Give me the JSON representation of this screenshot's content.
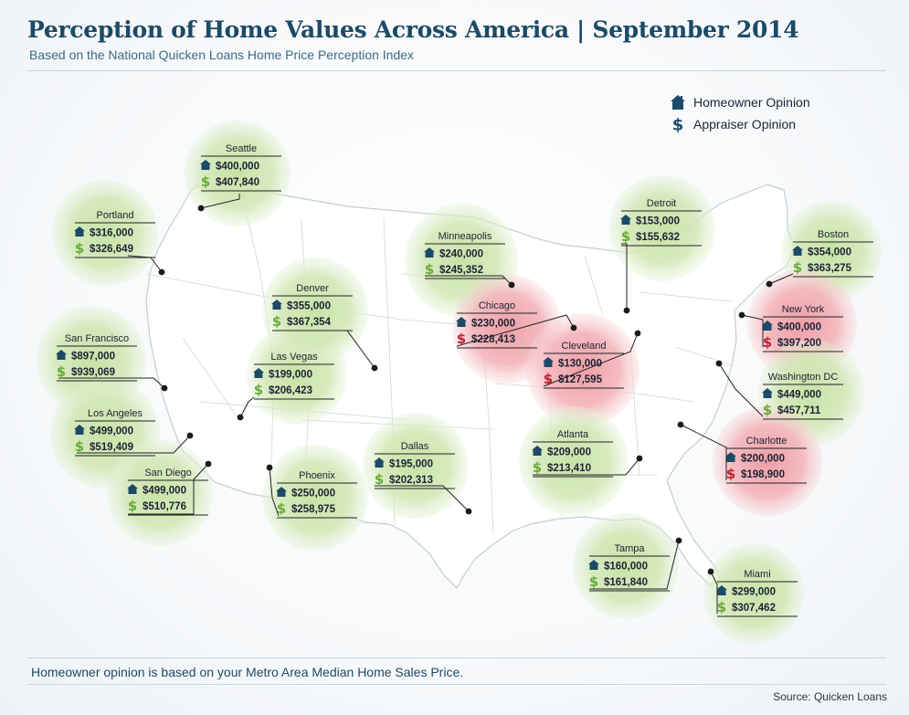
{
  "header": {
    "title": "Perception of Home Values Across America | September 2014",
    "subtitle": "Based on the National Quicken Loans Home Price Perception Index"
  },
  "legend": {
    "homeowner_label": "Homeowner Opinion",
    "appraiser_label": "Appraiser Opinion",
    "homeowner_icon": "house-icon",
    "appraiser_icon": "dollar-icon"
  },
  "colors": {
    "house_icon": "#1c4a67",
    "dollar_green": "#6aaa3a",
    "dollar_red": "#c0212e",
    "bubble_green": "#c8e2a6",
    "bubble_red": "#ee9ea6",
    "map_fill": "#ffffff",
    "map_border": "#c4cdd4"
  },
  "cities": [
    {
      "name": "Seattle",
      "homeowner": "$400,000",
      "appraiser": "$407,840",
      "status": "green"
    },
    {
      "name": "Portland",
      "homeowner": "$316,000",
      "appraiser": "$326,649",
      "status": "green"
    },
    {
      "name": "San Francisco",
      "homeowner": "$897,000",
      "appraiser": "$939,069",
      "status": "green"
    },
    {
      "name": "Los Angeles",
      "homeowner": "$499,000",
      "appraiser": "$519,409",
      "status": "green"
    },
    {
      "name": "San Diego",
      "homeowner": "$499,000",
      "appraiser": "$510,776",
      "status": "green"
    },
    {
      "name": "Las Vegas",
      "homeowner": "$199,000",
      "appraiser": "$206,423",
      "status": "green"
    },
    {
      "name": "Denver",
      "homeowner": "$355,000",
      "appraiser": "$367,354",
      "status": "green"
    },
    {
      "name": "Phoenix",
      "homeowner": "$250,000",
      "appraiser": "$258,975",
      "status": "green"
    },
    {
      "name": "Dallas",
      "homeowner": "$195,000",
      "appraiser": "$202,313",
      "status": "green"
    },
    {
      "name": "Minneapolis",
      "homeowner": "$240,000",
      "appraiser": "$245,352",
      "status": "green"
    },
    {
      "name": "Chicago",
      "homeowner": "$230,000",
      "appraiser": "$228,413",
      "status": "red"
    },
    {
      "name": "Cleveland",
      "homeowner": "$130,000",
      "appraiser": "$127,595",
      "status": "red"
    },
    {
      "name": "Detroit",
      "homeowner": "$153,000",
      "appraiser": "$155,632",
      "status": "green"
    },
    {
      "name": "Atlanta",
      "homeowner": "$209,000",
      "appraiser": "$213,410",
      "status": "green"
    },
    {
      "name": "Tampa",
      "homeowner": "$160,000",
      "appraiser": "$161,840",
      "status": "green"
    },
    {
      "name": "Miami",
      "homeowner": "$299,000",
      "appraiser": "$307,462",
      "status": "green"
    },
    {
      "name": "Boston",
      "homeowner": "$354,000",
      "appraiser": "$363,275",
      "status": "green"
    },
    {
      "name": "New York",
      "homeowner": "$400,000",
      "appraiser": "$397,200",
      "status": "red"
    },
    {
      "name": "Washington DC",
      "homeowner": "$449,000",
      "appraiser": "$457,711",
      "status": "green"
    },
    {
      "name": "Charlotte",
      "homeowner": "$200,000",
      "appraiser": "$198,900",
      "status": "red"
    }
  ],
  "footer": {
    "note": "Homeowner opinion is based on your Metro Area Median Home Sales Price.",
    "source": "Source: Quicken Loans"
  }
}
